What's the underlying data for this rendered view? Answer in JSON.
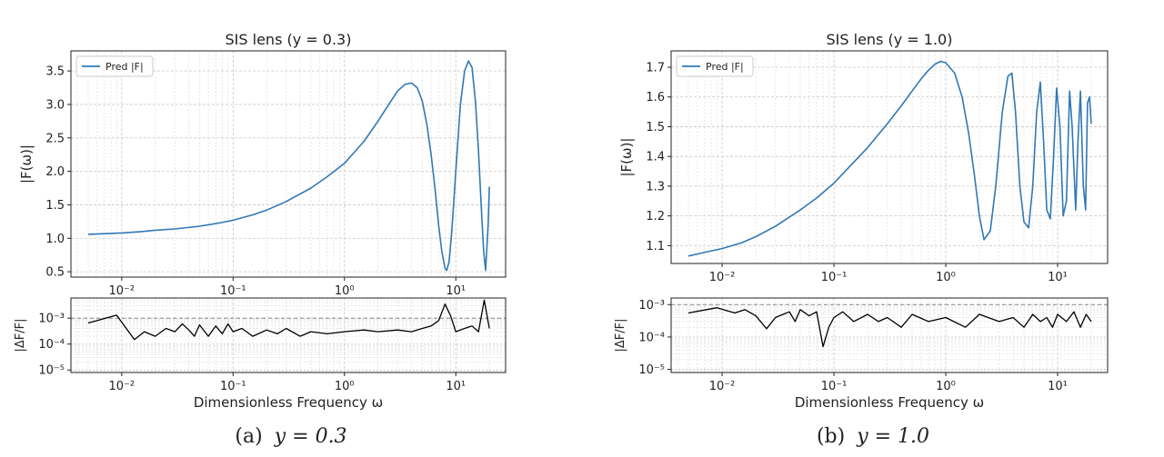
{
  "captions": [
    {
      "label": "(a)",
      "equation": "y = 0.3"
    },
    {
      "label": "(b)",
      "equation": "y = 1.0"
    }
  ],
  "chart_data": [
    {
      "type": "line",
      "title": "SIS lens (y = 0.3)",
      "xlabel": "",
      "ylabel": "|F(ω)|",
      "x_scale": "log",
      "xlim": [
        0.0035,
        28
      ],
      "ylim": [
        0.42,
        3.8
      ],
      "x_ticks": [
        0.01,
        0.1,
        1,
        10
      ],
      "x_tick_labels": [
        "10⁻²",
        "10⁻¹",
        "10⁰",
        "10¹"
      ],
      "y_ticks": [
        0.5,
        1.0,
        1.5,
        2.0,
        2.5,
        3.0,
        3.5
      ],
      "y_tick_labels": [
        "0.5",
        "1.0",
        "1.5",
        "2.0",
        "2.5",
        "3.0",
        "3.5"
      ],
      "grid": true,
      "legend": {
        "position": "top-left",
        "entries": [
          "Pred |F|"
        ]
      },
      "color": "#3178b4",
      "series": [
        {
          "name": "Pred |F|",
          "x": [
            0.005,
            0.0075,
            0.01,
            0.015,
            0.02,
            0.03,
            0.05,
            0.07,
            0.1,
            0.15,
            0.2,
            0.3,
            0.5,
            0.7,
            1.0,
            1.5,
            2.0,
            2.5,
            3.0,
            3.5,
            4.0,
            4.5,
            5.0,
            5.5,
            6.0,
            6.5,
            7.0,
            7.5,
            8.0,
            8.3,
            8.7,
            9.2,
            10.0,
            11.0,
            12.0,
            13.0,
            14.0,
            15.0,
            16.0,
            17.0,
            17.8,
            18.5,
            19.5,
            20.0
          ],
          "y": [
            1.06,
            1.07,
            1.08,
            1.1,
            1.12,
            1.14,
            1.18,
            1.22,
            1.27,
            1.35,
            1.42,
            1.55,
            1.75,
            1.92,
            2.12,
            2.45,
            2.75,
            3.0,
            3.2,
            3.3,
            3.32,
            3.25,
            3.05,
            2.7,
            2.25,
            1.75,
            1.2,
            0.8,
            0.55,
            0.52,
            0.65,
            1.1,
            2.0,
            3.0,
            3.5,
            3.65,
            3.55,
            3.05,
            2.3,
            1.4,
            0.8,
            0.52,
            1.2,
            1.77
          ]
        }
      ]
    },
    {
      "type": "line",
      "title": "",
      "xlabel": "Dimensionless Frequency ω",
      "ylabel": "|ΔF/F|",
      "x_scale": "log",
      "y_scale": "log",
      "xlim": [
        0.0035,
        28
      ],
      "ylim": [
        8e-06,
        0.006
      ],
      "x_ticks": [
        0.01,
        0.1,
        1,
        10
      ],
      "x_tick_labels": [
        "10⁻²",
        "10⁻¹",
        "10⁰",
        "10¹"
      ],
      "y_ticks": [
        1e-05,
        0.0001,
        0.001
      ],
      "y_tick_labels": [
        "10⁻⁵",
        "10⁻⁴",
        "10⁻³"
      ],
      "reference_line": 0.001,
      "grid": true,
      "color": "#000000",
      "series": [
        {
          "x": [
            0.005,
            0.009,
            0.013,
            0.016,
            0.02,
            0.025,
            0.03,
            0.035,
            0.04,
            0.045,
            0.05,
            0.06,
            0.07,
            0.08,
            0.09,
            0.1,
            0.12,
            0.15,
            0.2,
            0.25,
            0.3,
            0.4,
            0.5,
            0.7,
            1.0,
            1.5,
            2.0,
            3.0,
            4.0,
            5.0,
            6.0,
            7.0,
            8.0,
            9.0,
            10.0,
            12.0,
            14.0,
            16.0,
            18.0,
            20.0
          ],
          "y": [
            0.00065,
            0.0013,
            0.00015,
            0.0003,
            0.0002,
            0.0004,
            0.0003,
            0.0006,
            0.00035,
            0.0002,
            0.00055,
            0.0002,
            0.0005,
            0.00025,
            0.0006,
            0.0003,
            0.0004,
            0.0002,
            0.00035,
            0.00025,
            0.0004,
            0.0002,
            0.0003,
            0.00025,
            0.0003,
            0.00035,
            0.0003,
            0.00035,
            0.0003,
            0.0004,
            0.0005,
            0.0008,
            0.0035,
            0.0012,
            0.0003,
            0.0004,
            0.0005,
            0.0003,
            0.005,
            0.0004
          ]
        }
      ]
    },
    {
      "type": "line",
      "title": "SIS lens (y = 1.0)",
      "xlabel": "",
      "ylabel": "|F(ω)|",
      "x_scale": "log",
      "xlim": [
        0.0035,
        28
      ],
      "ylim": [
        1.04,
        1.755
      ],
      "x_ticks": [
        0.01,
        0.1,
        1,
        10
      ],
      "x_tick_labels": [
        "10⁻²",
        "10⁻¹",
        "10⁰",
        "10¹"
      ],
      "y_ticks": [
        1.1,
        1.2,
        1.3,
        1.4,
        1.5,
        1.6,
        1.7
      ],
      "y_tick_labels": [
        "1.1",
        "1.2",
        "1.3",
        "1.4",
        "1.5",
        "1.6",
        "1.7"
      ],
      "grid": true,
      "legend": {
        "position": "top-left",
        "entries": [
          "Pred |F|"
        ]
      },
      "color": "#3178b4",
      "series": [
        {
          "name": "Pred |F|",
          "x": [
            0.005,
            0.0075,
            0.01,
            0.015,
            0.02,
            0.03,
            0.05,
            0.07,
            0.1,
            0.15,
            0.2,
            0.3,
            0.4,
            0.5,
            0.6,
            0.7,
            0.8,
            0.9,
            1.0,
            1.2,
            1.4,
            1.6,
            1.8,
            2.0,
            2.2,
            2.5,
            2.8,
            3.2,
            3.6,
            3.9,
            4.2,
            4.6,
            5.0,
            5.5,
            6.0,
            6.5,
            7.0,
            7.5,
            8.0,
            8.6,
            9.2,
            9.8,
            10.5,
            11.2,
            12.0,
            12.8,
            13.5,
            14.5,
            15.2,
            16.0,
            17.0,
            17.8,
            18.5,
            19.3,
            20.0
          ],
          "y": [
            1.065,
            1.08,
            1.09,
            1.11,
            1.13,
            1.165,
            1.22,
            1.26,
            1.31,
            1.38,
            1.43,
            1.51,
            1.57,
            1.62,
            1.66,
            1.69,
            1.71,
            1.72,
            1.715,
            1.68,
            1.6,
            1.48,
            1.34,
            1.2,
            1.12,
            1.15,
            1.3,
            1.55,
            1.67,
            1.68,
            1.55,
            1.3,
            1.18,
            1.16,
            1.3,
            1.55,
            1.65,
            1.45,
            1.22,
            1.19,
            1.4,
            1.63,
            1.5,
            1.2,
            1.25,
            1.62,
            1.5,
            1.22,
            1.45,
            1.62,
            1.3,
            1.22,
            1.58,
            1.6,
            1.51
          ]
        }
      ]
    },
    {
      "type": "line",
      "title": "",
      "xlabel": "Dimensionless Frequency ω",
      "ylabel": "|ΔF/F|",
      "x_scale": "log",
      "y_scale": "log",
      "xlim": [
        0.0035,
        28
      ],
      "ylim": [
        8e-06,
        0.0016
      ],
      "x_ticks": [
        0.01,
        0.1,
        1,
        10
      ],
      "x_tick_labels": [
        "10⁻²",
        "10⁻¹",
        "10⁰",
        "10¹"
      ],
      "y_ticks": [
        1e-05,
        0.0001,
        0.001
      ],
      "y_tick_labels": [
        "10⁻⁵",
        "10⁻⁴",
        "10⁻³"
      ],
      "reference_line": 0.001,
      "grid": true,
      "color": "#000000",
      "series": [
        {
          "x": [
            0.005,
            0.009,
            0.013,
            0.016,
            0.02,
            0.025,
            0.03,
            0.035,
            0.04,
            0.045,
            0.05,
            0.06,
            0.07,
            0.08,
            0.09,
            0.1,
            0.12,
            0.15,
            0.2,
            0.25,
            0.3,
            0.4,
            0.5,
            0.7,
            1.0,
            1.5,
            2.0,
            3.0,
            4.0,
            5.0,
            6.0,
            7.0,
            8.0,
            9.0,
            10.0,
            12.0,
            14.0,
            16.0,
            18.0,
            20.0
          ],
          "y": [
            0.00055,
            0.0008,
            0.00055,
            0.0007,
            0.00045,
            0.00018,
            0.0004,
            0.0005,
            0.0006,
            0.0003,
            0.0007,
            0.00045,
            0.0006,
            5e-05,
            0.0002,
            0.0004,
            0.0006,
            0.0003,
            0.0005,
            0.0003,
            0.0004,
            0.0002,
            0.0005,
            0.0003,
            0.0004,
            0.0002,
            0.0005,
            0.0003,
            0.0004,
            0.0002,
            0.0005,
            0.0003,
            0.0004,
            0.0002,
            0.0005,
            0.0003,
            0.0006,
            0.0002,
            0.0005,
            0.0003
          ]
        }
      ]
    }
  ]
}
